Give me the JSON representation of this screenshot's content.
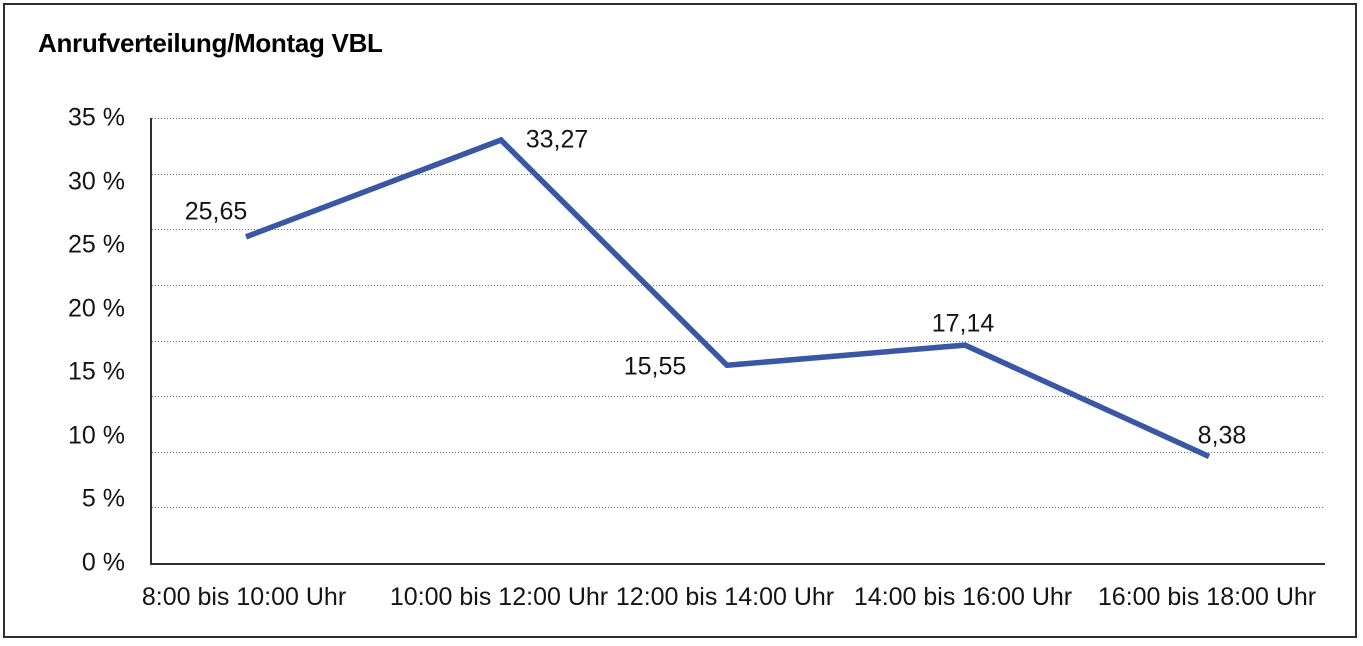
{
  "chart_data": {
    "type": "line",
    "title": "Anrufverteilung/Montag VBL",
    "categories": [
      "8:00 bis 10:00 Uhr",
      "10:00 bis 12:00 Uhr",
      "12:00 bis 14:00 Uhr",
      "14:00 bis 16:00 Uhr",
      "16:00 bis 18:00 Uhr"
    ],
    "values": [
      25.65,
      33.27,
      15.55,
      17.14,
      8.38
    ],
    "value_labels": [
      "25,65",
      "33,27",
      "15,55",
      "17,14",
      "8,38"
    ],
    "xlabel": "",
    "ylabel": "",
    "ylim": [
      0,
      35
    ],
    "y_tick_step": 5,
    "y_tick_labels": [
      "35 %",
      "30 %",
      "25 %",
      "20 %",
      "15 %",
      "10 %",
      "5 %",
      "0 %"
    ],
    "grid": "horizontal-dotted",
    "legend_position": "none",
    "line_color": "#3A57A5"
  }
}
